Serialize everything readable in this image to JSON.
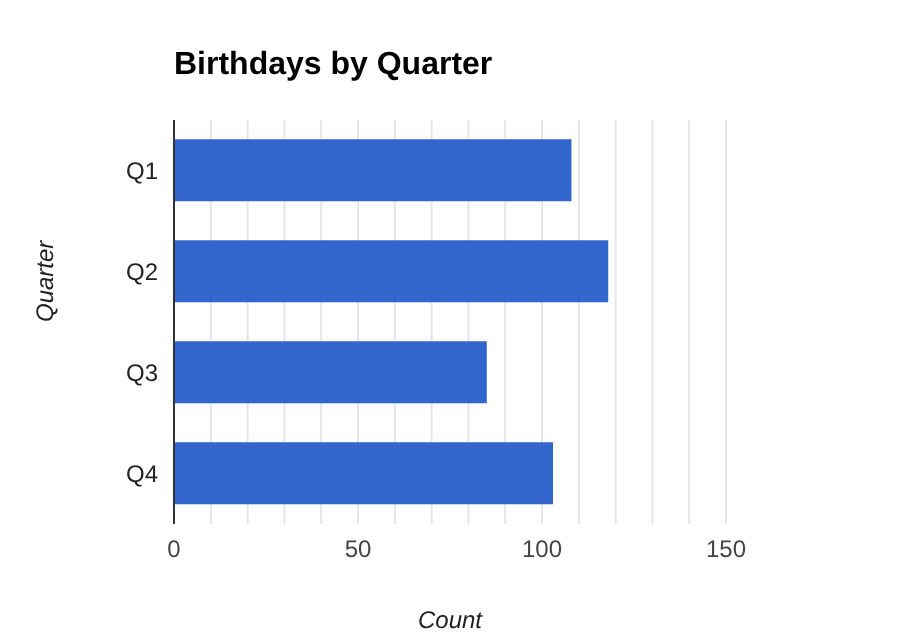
{
  "chart_data": {
    "type": "bar",
    "orientation": "horizontal",
    "title": "Birthdays by Quarter",
    "xlabel": "Count",
    "ylabel": "Quarter",
    "categories": [
      "Q1",
      "Q2",
      "Q3",
      "Q4"
    ],
    "values": [
      108,
      118,
      85,
      103
    ],
    "color": "#3366cc",
    "xlim": [
      0,
      150
    ],
    "xticks": [
      0,
      {
        "value": 10,
        "label": null
      },
      {
        "value": 20,
        "label": null
      },
      {
        "value": 30,
        "label": null
      },
      {
        "value": 40,
        "label": null
      },
      50,
      {
        "value": 60,
        "label": null
      },
      {
        "value": 70,
        "label": null
      },
      {
        "value": 80,
        "label": null
      },
      {
        "value": 90,
        "label": null
      },
      100,
      {
        "value": 110,
        "label": null
      },
      {
        "value": 120,
        "label": null
      },
      {
        "value": 130,
        "label": null
      },
      {
        "value": 140,
        "label": null
      },
      150
    ],
    "grid": "x"
  }
}
